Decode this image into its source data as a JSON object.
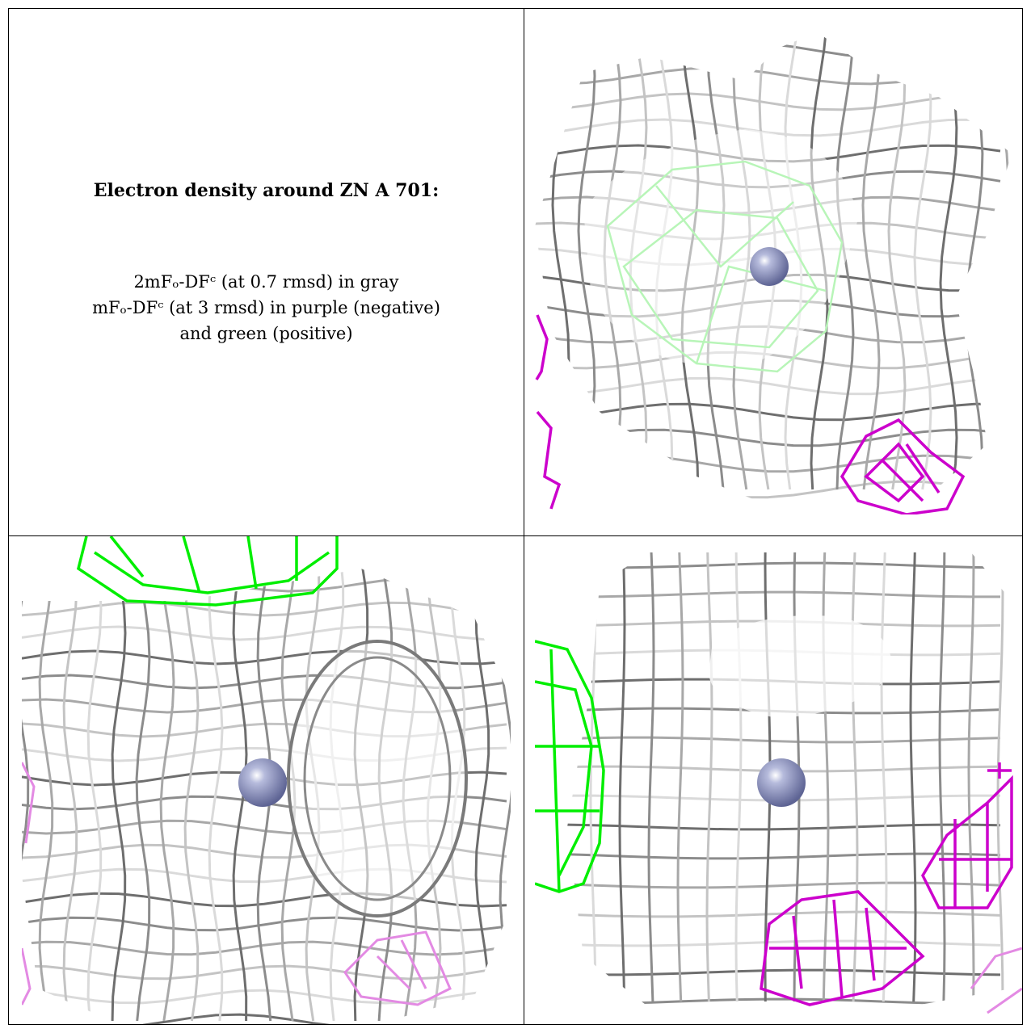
{
  "caption": {
    "title": "Electron density around ZN A 701:",
    "line1": "2mFₒ-DFᶜ (at 0.7 rmsd) in gray",
    "line2": "mFₒ-DFᶜ (at 3 rmsd) in purple (negative)",
    "line3": "and green (positive)"
  },
  "colors": {
    "mesh_gray": "#8a8a8a",
    "mesh_light": "#cfcfcf",
    "negative_purple": "#cc00cc",
    "negative_light": "#e38ae3",
    "positive_green": "#00ee00",
    "positive_light": "#b8f5b8",
    "zinc_atom": "#8f95bf"
  },
  "panels": [
    {
      "view": "view-1",
      "atom": "ZN A 701"
    },
    {
      "view": "view-2",
      "atom": "ZN A 701"
    },
    {
      "view": "view-3",
      "atom": "ZN A 701"
    }
  ]
}
